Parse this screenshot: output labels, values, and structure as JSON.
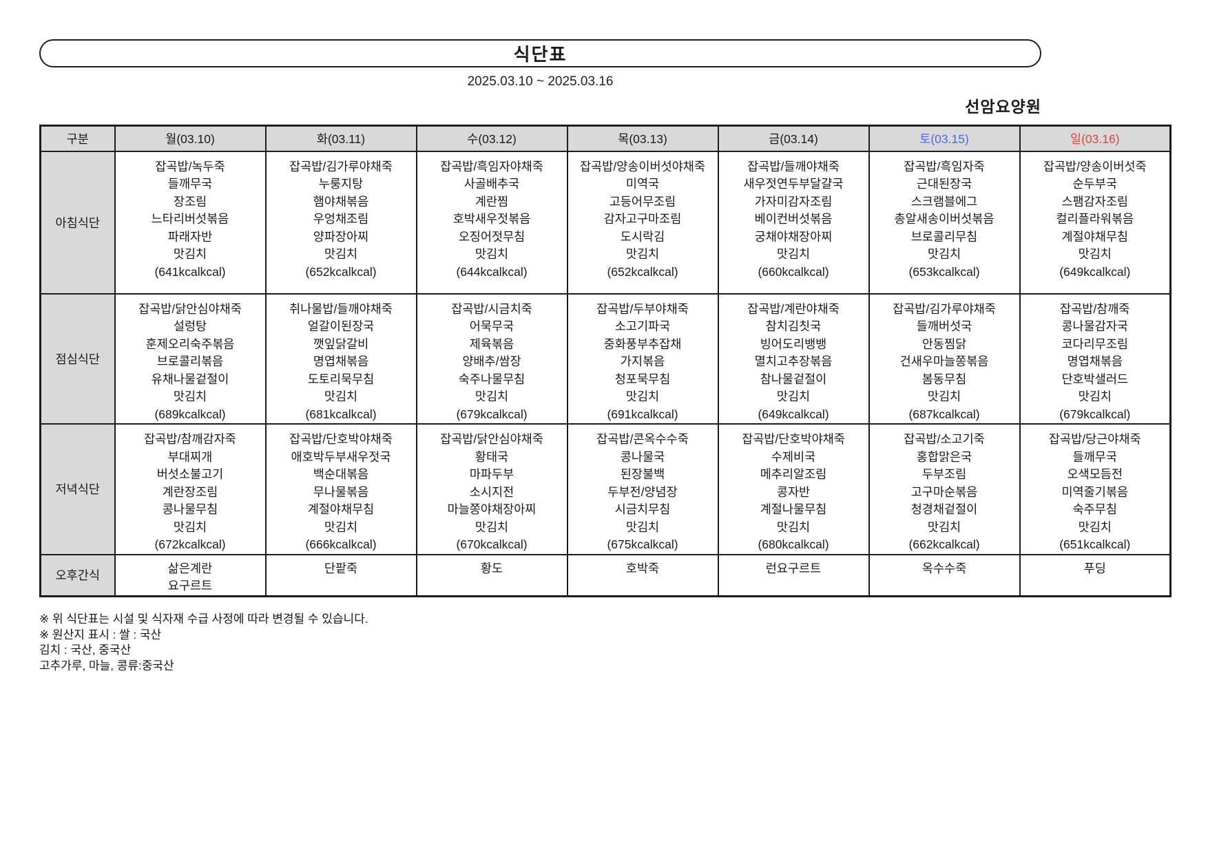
{
  "header": {
    "title": "식단표",
    "date_range": "2025.03.10 ~ 2025.03.16",
    "facility": "선암요양원"
  },
  "colors": {
    "saturday": "#4a69e1",
    "sunday": "#e8403a",
    "header_bg": "#d9d9d9",
    "border": "#1c1c1c"
  },
  "table": {
    "corner_label": "구분",
    "day_headers": [
      "월(03.10)",
      "화(03.11)",
      "수(03.12)",
      "목(03.13)",
      "금(03.14)",
      "토(03.15)",
      "일(03.16)"
    ],
    "rows": [
      {
        "label": "아침식단",
        "cells": [
          "잡곡밥/녹두죽\n들깨무국\n장조림\n느타리버섯볶음\n파래자반\n맛김치\n(641kcalkcal)",
          "잡곡밥/김가루야채죽\n누룽지탕\n햄야채볶음\n우엉채조림\n양파장아찌\n맛김치\n(652kcalkcal)",
          "잡곡밥/흑임자야채죽\n사골배추국\n계란찜\n호박새우젓볶음\n오징어젓무침\n맛김치\n(644kcalkcal)",
          "잡곡밥/양송이버섯야채죽\n미역국\n고등어무조림\n감자고구마조림\n도시락김\n맛김치\n(652kcalkcal)",
          "잡곡밥/들깨야채죽\n새우젓연두부달걀국\n가자미감자조림\n베이컨버섯볶음\n궁채야채장아찌\n맛김치\n(660kcalkcal)",
          "잡곡밥/흑임자죽\n근대된장국\n스크램블에그\n총알새송이버섯볶음\n브로콜리무침\n맛김치\n(653kcalkcal)",
          "잡곡밥/양송이버섯죽\n순두부국\n스팸감자조림\n컬리플라워볶음\n계절야채무침\n맛김치\n(649kcalkcal)"
        ]
      },
      {
        "label": "점심식단",
        "cells": [
          "잡곡밥/닭안심야채죽\n설렁탕\n훈제오리숙주볶음\n브로콜리볶음\n유채나물겉절이\n맛김치\n(689kcalkcal)",
          "취나물밥/들깨야채죽\n얼갈이된장국\n깻잎닭갈비\n명엽채볶음\n도토리묵무침\n맛김치\n(681kcalkcal)",
          "잡곡밥/시금치죽\n어묵무국\n제육볶음\n양배추/쌈장\n숙주나물무침\n맛김치\n(679kcalkcal)",
          "잡곡밥/두부야채죽\n소고기파국\n중화풍부추잡채\n가지볶음\n청포묵무침\n맛김치\n(691kcalkcal)",
          "잡곡밥/계란야채죽\n참치김칫국\n빙어도리뱅뱅\n멸치고추장볶음\n참나물겉절이\n맛김치\n(649kcalkcal)",
          "잡곡밥/김가루야채죽\n들깨버섯국\n안동찜닭\n건새우마늘쫑볶음\n봄동무침\n맛김치\n(687kcalkcal)",
          "잡곡밥/참깨죽\n콩나물감자국\n코다리무조림\n명엽채볶음\n단호박샐러드\n맛김치\n(679kcalkcal)"
        ]
      },
      {
        "label": "저녁식단",
        "cells": [
          "잡곡밥/참깨감자죽\n부대찌개\n버섯소불고기\n계란장조림\n콩나물무침\n맛김치\n(672kcalkcal)",
          "잡곡밥/단호박야채죽\n애호박두부새우젓국\n백순대볶음\n무나물볶음\n계절야채무침\n맛김치\n(666kcalkcal)",
          "잡곡밥/닭안심야채죽\n황태국\n마파두부\n소시지전\n마늘쫑야채장아찌\n맛김치\n(670kcalkcal)",
          "잡곡밥/콘옥수수죽\n콩나물국\n된장불백\n두부전/양념장\n시금치무침\n맛김치\n(675kcalkcal)",
          "잡곡밥/단호박야채죽\n수제비국\n메추리알조림\n콩자반\n계절나물무침\n맛김치\n(680kcalkcal)",
          "잡곡밥/소고기죽\n홍합맑은국\n두부조림\n고구마순볶음\n청경채겉절이\n맛김치\n(662kcalkcal)",
          "잡곡밥/당근야채죽\n들깨무국\n오색모듬전\n미역줄기볶음\n숙주무침\n맛김치\n(651kcalkcal)"
        ]
      },
      {
        "label": "오후간식",
        "cells": [
          "삶은계란\n요구르트",
          "단팥죽",
          "황도",
          "호박죽",
          "런요구르트",
          "옥수수죽",
          "푸딩"
        ]
      }
    ]
  },
  "footer": {
    "notes": [
      "※ 위 식단표는 시설 및 식자재 수급 사정에 따라 변경될 수 있습니다.",
      "※ 원산지 표시 : 쌀 : 국산",
      "김치 : 국산, 중국산",
      "고추가루, 마늘, 콩류:중국산"
    ]
  }
}
